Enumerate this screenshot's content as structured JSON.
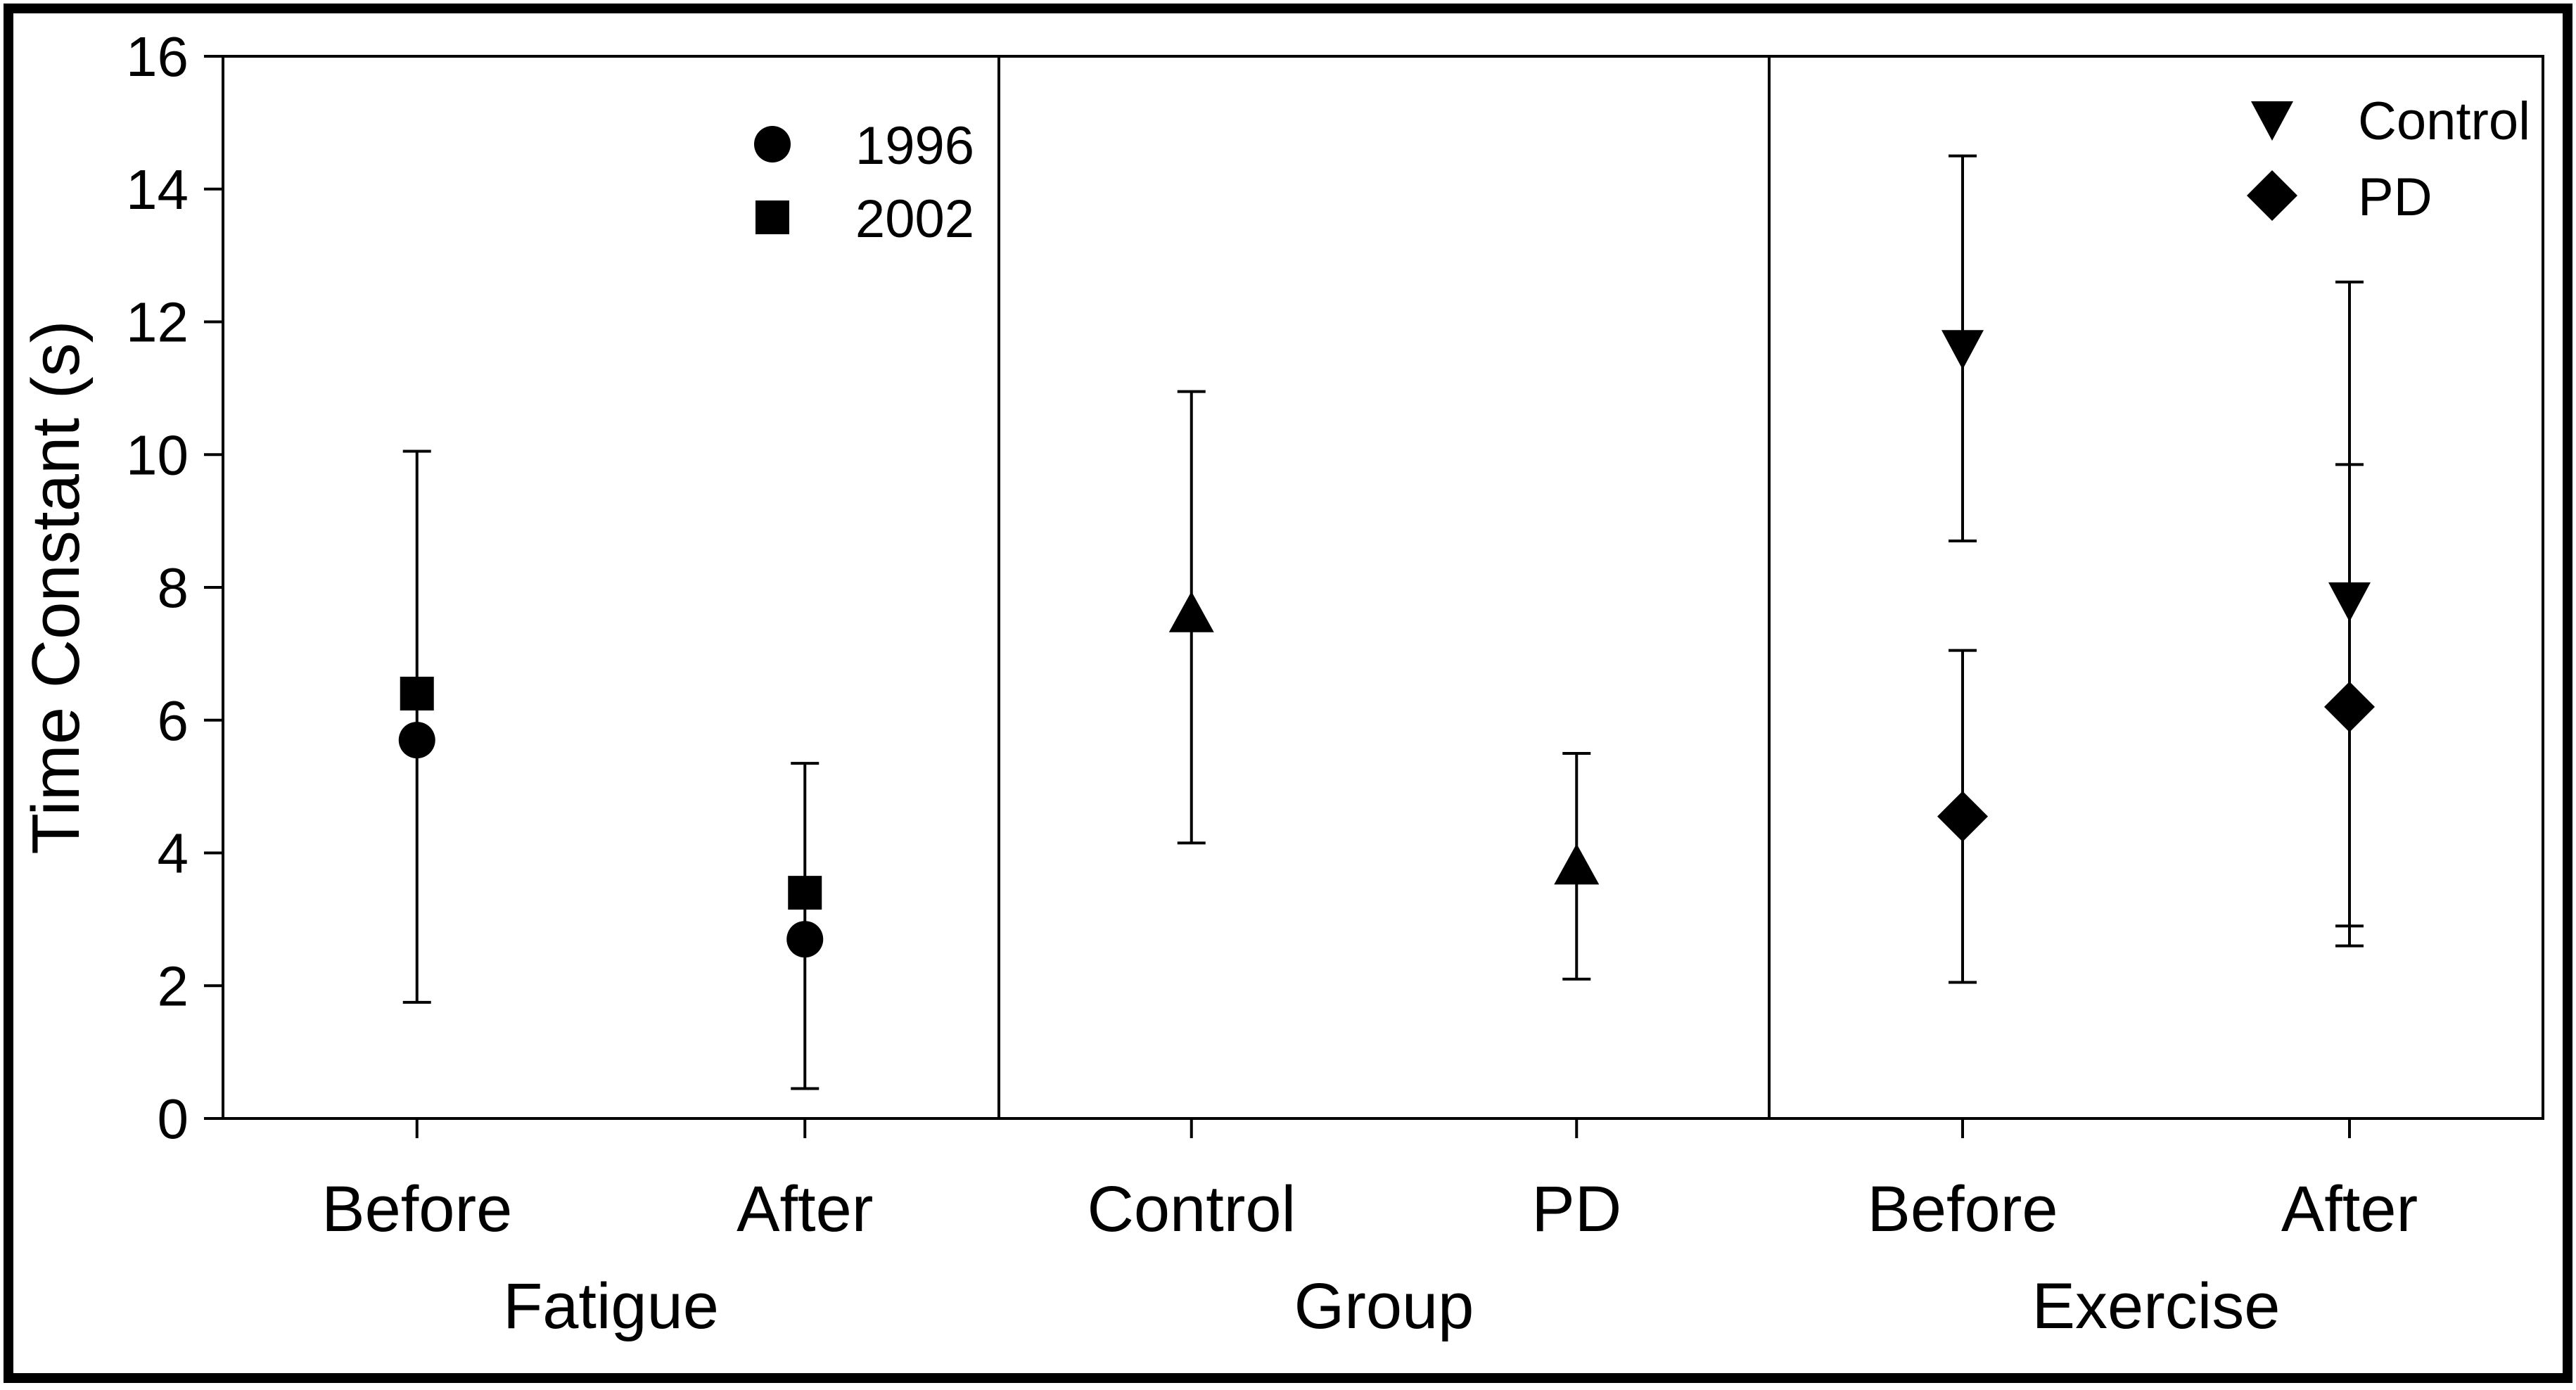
{
  "chart_data": {
    "type": "scatter",
    "ylabel": "Time Constant (s)",
    "ylim": [
      0,
      16
    ],
    "yticks": [
      0,
      2,
      4,
      6,
      8,
      10,
      12,
      14,
      16
    ],
    "grid": false,
    "panels": [
      {
        "xlabel": "Fatigue",
        "categories": [
          "Before",
          "After"
        ],
        "legend": {
          "placement": "top-right"
        },
        "series": [
          {
            "name": "1996",
            "marker": "circle",
            "points": [
              {
                "category": "Before",
                "y": 5.7,
                "err_low": 1.75,
                "err_high": 10.05
              },
              {
                "category": "After",
                "y": 2.7,
                "err_low": 0.45,
                "err_high": 5.35
              }
            ]
          },
          {
            "name": "2002",
            "marker": "square",
            "points": [
              {
                "category": "Before",
                "y": 6.4
              },
              {
                "category": "After",
                "y": 3.4
              }
            ]
          }
        ]
      },
      {
        "xlabel": "Group",
        "categories": [
          "Control",
          "PD"
        ],
        "series": [
          {
            "name": "",
            "marker": "triangle-up",
            "points": [
              {
                "category": "Control",
                "y": 7.6,
                "err_low": 4.15,
                "err_high": 10.95
              },
              {
                "category": "PD",
                "y": 3.8,
                "err_low": 2.1,
                "err_high": 5.5
              }
            ]
          }
        ]
      },
      {
        "xlabel": "Exercise",
        "categories": [
          "Before",
          "After"
        ],
        "legend": {
          "placement": "top-right"
        },
        "series": [
          {
            "name": "Control",
            "marker": "triangle-down",
            "points": [
              {
                "category": "Before",
                "y": 11.6,
                "err_low": 8.7,
                "err_high": 14.5
              },
              {
                "category": "After",
                "y": 7.8,
                "err_low": 2.9,
                "err_high": 9.85
              }
            ]
          },
          {
            "name": "PD",
            "marker": "diamond",
            "points": [
              {
                "category": "Before",
                "y": 4.55,
                "err_low": 2.05,
                "err_high": 7.05
              },
              {
                "category": "After",
                "y": 6.2,
                "err_low": 2.6,
                "err_high": 12.6
              }
            ]
          }
        ]
      }
    ]
  }
}
